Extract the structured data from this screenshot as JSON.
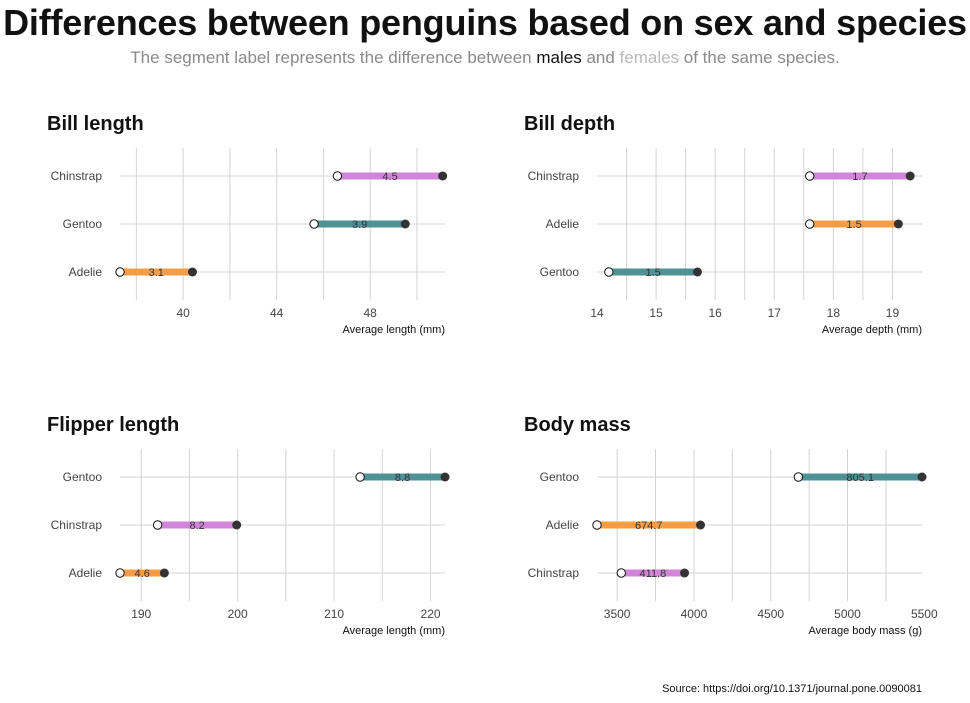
{
  "title": "Differences between penguins based on sex and species",
  "subtitle": {
    "before": "The segment label represents the difference between ",
    "males": "males",
    "and": " and ",
    "females": "females",
    "after": " of the same species."
  },
  "source": "Source: https://doi.org/10.1371/journal.pone.0090081",
  "colors": {
    "Adelie": "#f89c45",
    "Chinstrap": "#d184d9",
    "Gentoo": "#4e9197",
    "male": "#333333",
    "female": "#ffffff",
    "grid": "#d4d4d4"
  },
  "chart_data": [
    {
      "type": "dumbbell",
      "title": "Bill length",
      "xlabel": "Average length (mm)",
      "xlim": [
        37.3,
        51.2
      ],
      "xticks": [
        40,
        44,
        48
      ],
      "species_order": [
        "Chinstrap",
        "Gentoo",
        "Adelie"
      ],
      "series": [
        {
          "species": "Chinstrap",
          "female": 46.6,
          "male": 51.1,
          "label": "4.5"
        },
        {
          "species": "Gentoo",
          "female": 45.6,
          "male": 49.5,
          "label": "3.9"
        },
        {
          "species": "Adelie",
          "female": 37.3,
          "male": 40.4,
          "label": "3.1"
        }
      ]
    },
    {
      "type": "dumbbell",
      "title": "Bill depth",
      "xlabel": "Average depth (mm)",
      "xlim": [
        14.0,
        19.5
      ],
      "xticks": [
        14,
        15,
        16,
        17,
        18,
        19
      ],
      "species_order": [
        "Chinstrap",
        "Adelie",
        "Gentoo"
      ],
      "series": [
        {
          "species": "Chinstrap",
          "female": 17.6,
          "male": 19.3,
          "label": "1.7"
        },
        {
          "species": "Adelie",
          "female": 17.6,
          "male": 19.1,
          "label": "1.5"
        },
        {
          "species": "Gentoo",
          "female": 14.2,
          "male": 15.7,
          "label": "1.5"
        }
      ]
    },
    {
      "type": "dumbbell",
      "title": "Flipper length",
      "xlabel": "Average length (mm)",
      "xlim": [
        187.8,
        221.5
      ],
      "xticks": [
        190,
        200,
        210,
        220
      ],
      "species_order": [
        "Gentoo",
        "Chinstrap",
        "Adelie"
      ],
      "series": [
        {
          "species": "Gentoo",
          "female": 212.7,
          "male": 221.5,
          "label": "8.8"
        },
        {
          "species": "Chinstrap",
          "female": 191.7,
          "male": 199.9,
          "label": "8.2"
        },
        {
          "species": "Adelie",
          "female": 187.8,
          "male": 192.4,
          "label": "4.6"
        }
      ]
    },
    {
      "type": "dumbbell",
      "title": "Body mass",
      "xlabel": "Average body mass (g)",
      "xlim": [
        3369,
        5485
      ],
      "xticks": [
        3500,
        4000,
        4500,
        5000,
        5500
      ],
      "species_order": [
        "Gentoo",
        "Adelie",
        "Chinstrap"
      ],
      "series": [
        {
          "species": "Gentoo",
          "female": 4680,
          "male": 5485,
          "label": "805.1"
        },
        {
          "species": "Adelie",
          "female": 3369,
          "male": 4043,
          "label": "674.7"
        },
        {
          "species": "Chinstrap",
          "female": 3527,
          "male": 3939,
          "label": "411.8"
        }
      ]
    }
  ]
}
